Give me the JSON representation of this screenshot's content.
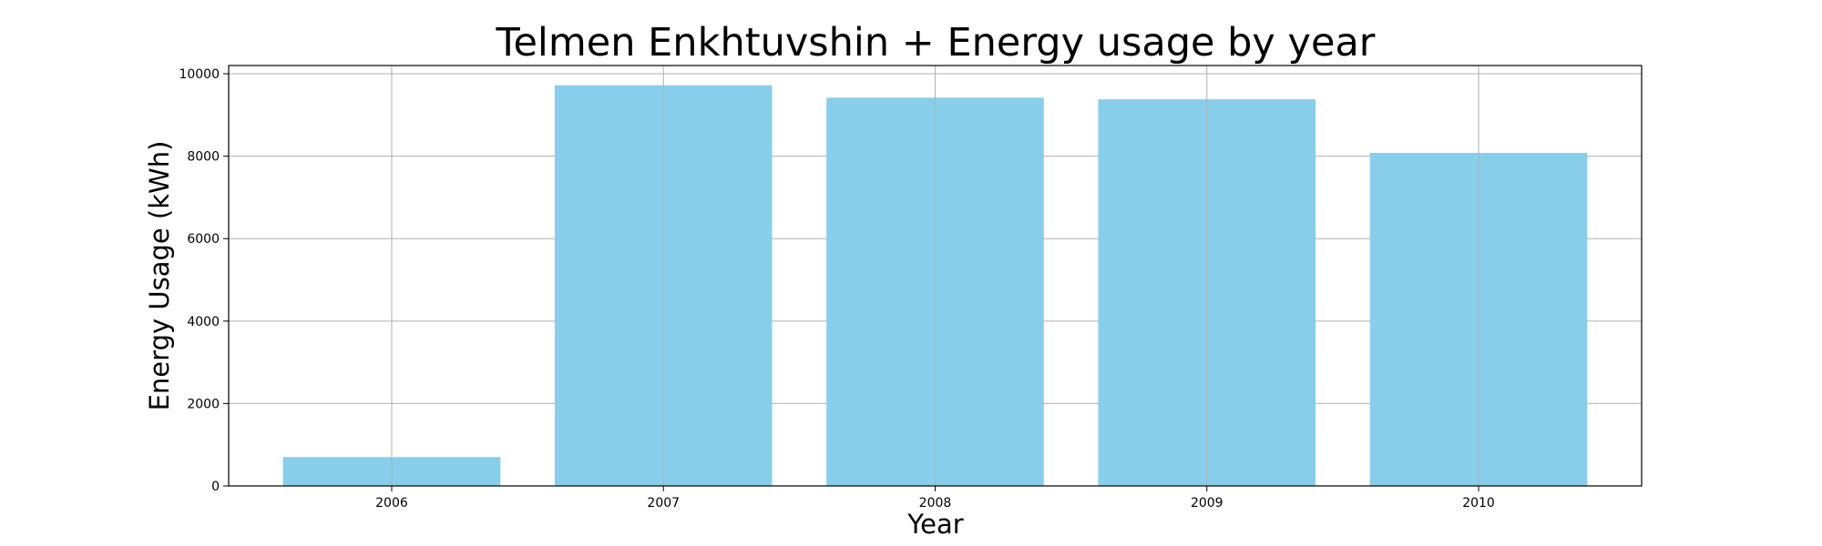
{
  "chart_data": {
    "type": "bar",
    "title": "Telmen Enkhtuvshin + Energy usage by year",
    "xlabel": "Year",
    "ylabel": "Energy Usage (kWh)",
    "categories": [
      "2006",
      "2007",
      "2008",
      "2009",
      "2010"
    ],
    "values": [
      700,
      9720,
      9420,
      9380,
      8080
    ],
    "ylim": [
      0,
      10200
    ],
    "yticks": [
      0,
      2000,
      4000,
      6000,
      8000,
      10000
    ],
    "grid": true,
    "bar_color": "#87ceeb",
    "grid_color": "#b0b0b0"
  }
}
